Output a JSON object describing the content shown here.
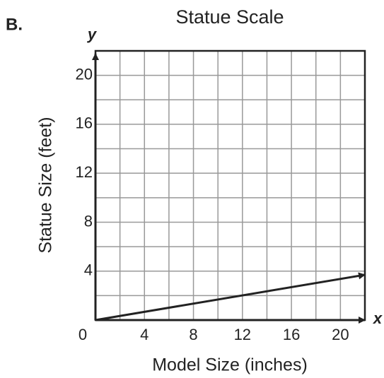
{
  "chart_data": {
    "type": "line",
    "panel_label": "B.",
    "title": "Statue Scale",
    "x_label": "Model Size (inches)",
    "y_label": "Statue Size (feet)",
    "x_axis_letter": "x",
    "y_axis_letter": "y",
    "x": [
      0,
      22
    ],
    "series": [
      {
        "name": "Statue Scale",
        "color": "#222222",
        "values": [
          0,
          3.7
        ]
      }
    ],
    "xlim": [
      0,
      22
    ],
    "ylim": [
      0,
      22
    ],
    "xticks": [
      0,
      4,
      8,
      12,
      16,
      20
    ],
    "yticks": [
      4,
      8,
      12,
      16,
      20
    ],
    "xminor": [
      2,
      6,
      10,
      14,
      18
    ],
    "yminor": [
      2,
      6,
      10,
      14,
      18
    ],
    "grid": true
  }
}
